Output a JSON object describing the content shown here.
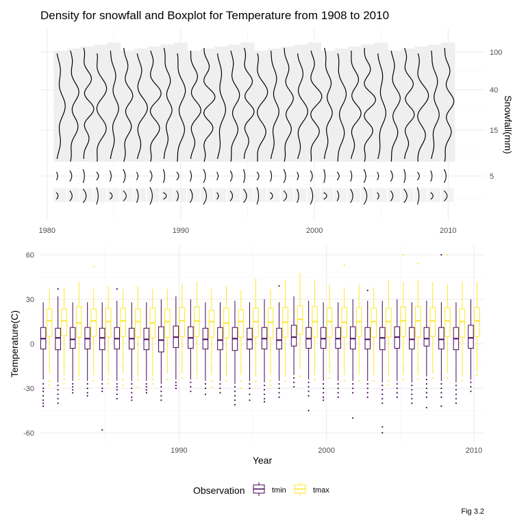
{
  "title": "Density for snowfall and Boxplot for Temperature from 1908 to 2010",
  "caption": "Fig 3.2",
  "chart_data": [
    {
      "type": "density",
      "x_ticks": [
        1980,
        1990,
        2000,
        2010
      ],
      "xlim": [
        1979.5,
        2012.7
      ],
      "y_ticks": [
        100,
        40,
        15,
        5
      ],
      "ylabel": "Snowfall(mm)",
      "ylabel_position": "right",
      "years": [
        1981,
        1982,
        1983,
        1984,
        1985,
        1986,
        1987,
        1988,
        1989,
        1990,
        1991,
        1992,
        1993,
        1994,
        1995,
        1996,
        1997,
        1998,
        1999,
        2000,
        2001,
        2002,
        2003,
        2004,
        2005,
        2006,
        2007,
        2008,
        2009,
        2010
      ],
      "grid": true
    },
    {
      "type": "boxplot",
      "xlabel": "Year",
      "ylabel": "Temperature(C)",
      "x_ticks": [
        1990,
        2000,
        2010
      ],
      "y_ticks": [
        60,
        30,
        0,
        -30,
        -60
      ],
      "ylim": [
        -64,
        63
      ],
      "legend_title": "Observation",
      "legend_position": "bottom",
      "grid": true,
      "years": [
        1981,
        1982,
        1983,
        1984,
        1985,
        1986,
        1987,
        1988,
        1989,
        1990,
        1991,
        1992,
        1993,
        1994,
        1995,
        1996,
        1997,
        1998,
        1999,
        2000,
        2001,
        2002,
        2003,
        2004,
        2005,
        2006,
        2007,
        2008,
        2009,
        2010
      ],
      "series": [
        {
          "name": "tmin",
          "color": "#440154",
          "median": [
            3.5,
            4,
            3,
            3.5,
            4,
            3.5,
            3.5,
            3,
            2.5,
            4.5,
            4,
            3,
            2.5,
            3.5,
            3,
            3.5,
            2.5,
            4.5,
            3.5,
            3.5,
            3.5,
            3.5,
            3,
            4,
            4.5,
            3,
            3.5,
            3,
            3.5,
            4
          ],
          "q1": [
            -3.5,
            -4,
            -3,
            -3.5,
            -4,
            -3.5,
            -3.5,
            -4,
            -5.5,
            -2.5,
            -3,
            -3.5,
            -4,
            -4.5,
            -3.5,
            -3.5,
            -3.5,
            -1.5,
            -3,
            -3,
            -3,
            -3.5,
            -3.5,
            -4,
            -3,
            -3.5,
            -1.5,
            -3.5,
            -4,
            -3
          ],
          "q3": [
            11,
            10.5,
            11,
            11,
            10.5,
            11,
            10.5,
            10.5,
            11.5,
            12,
            11.5,
            10.5,
            11,
            11,
            10.5,
            11,
            10.5,
            12.5,
            11,
            11,
            11,
            11.5,
            11,
            11,
            11.5,
            11,
            11,
            11,
            11,
            12.5
          ],
          "whisker_low": [
            -24,
            -26,
            -25,
            -25,
            -25,
            -25,
            -25,
            -25,
            -27,
            -24,
            -24,
            -25,
            -25,
            -27,
            -25,
            -26,
            -25,
            -21,
            -24,
            -25,
            -25,
            -25,
            -25,
            -26,
            -25,
            -26,
            -22,
            -25,
            -26,
            -24
          ],
          "whisker_high": [
            28,
            32,
            28,
            28,
            28,
            29,
            28,
            28,
            30,
            32,
            30,
            28,
            28,
            29,
            28,
            30,
            28,
            32,
            29,
            28,
            28,
            30,
            29,
            29,
            30,
            28,
            29,
            28,
            28,
            30
          ],
          "outliers": [
            [
              -27,
              -30,
              -32,
              -35,
              -38,
              -40,
              -42
            ],
            [
              -28,
              -31,
              -34,
              -37,
              -40,
              37
            ],
            [
              -27,
              -29,
              -31,
              -33
            ],
            [
              -27,
              -30,
              -33,
              -35
            ],
            [
              -27,
              -30,
              -32,
              -58
            ],
            [
              -27,
              -29,
              -31,
              -34,
              -37,
              37
            ],
            [
              -27,
              -30,
              -33,
              -36,
              -38
            ],
            [
              -27,
              -29,
              -31,
              -33
            ],
            [
              -29,
              -32,
              -35,
              -38
            ],
            [
              -26,
              -28,
              -30
            ],
            [
              -26,
              -29,
              -32
            ],
            [
              -27,
              -30,
              -34
            ],
            [
              -27,
              -30,
              -33
            ],
            [
              -29,
              -32,
              -35,
              -38,
              -41
            ],
            [
              -27,
              -30,
              -34,
              -38
            ],
            [
              -28,
              -31,
              -34,
              -37,
              -39
            ],
            [
              -27,
              -30,
              -33,
              -36,
              39
            ],
            [
              -23,
              -26,
              -29
            ],
            [
              -26,
              -29,
              -32,
              -35,
              -45
            ],
            [
              -27,
              -30,
              -33,
              -36,
              -38
            ],
            [
              -27,
              -30,
              -33,
              -36
            ],
            [
              -27,
              -30,
              -33,
              -50
            ],
            [
              -27,
              -30,
              -33,
              -36,
              36
            ],
            [
              -28,
              -31,
              -34,
              -37,
              -40,
              -56,
              -60
            ],
            [
              -27,
              -30,
              -33,
              -36
            ],
            [
              -28,
              -31,
              -34,
              -37,
              -40
            ],
            [
              -24,
              -27,
              -30,
              -33,
              -36,
              -43
            ],
            [
              -27,
              -30,
              -33,
              -36,
              -42,
              60
            ],
            [
              -28,
              -31,
              -34,
              -37,
              -40
            ],
            [
              -26,
              -29,
              -32
            ]
          ]
        },
        {
          "name": "tmax",
          "color": "#FDE725",
          "median": [
            15.5,
            15.5,
            14,
            15.5,
            15,
            15.5,
            15,
            14,
            15,
            15.5,
            15.5,
            15,
            14,
            15,
            15,
            14.5,
            14.5,
            16.5,
            15,
            15,
            14.5,
            15,
            15,
            15,
            15.5,
            15.5,
            15.5,
            15.5,
            15,
            15.5
          ],
          "q1": [
            5,
            5.5,
            4.5,
            5,
            4.5,
            5,
            4.5,
            4,
            4.5,
            5,
            5,
            4.5,
            4,
            4.5,
            4.5,
            4,
            4.5,
            6.5,
            4.5,
            4.5,
            4.5,
            5,
            4.5,
            4.5,
            5,
            4.5,
            5,
            5,
            4.5,
            5
          ],
          "q3": [
            23.5,
            23.5,
            25,
            23.5,
            24,
            24,
            23.5,
            24,
            23.5,
            24.5,
            25,
            22.5,
            24,
            23,
            24,
            24,
            24.5,
            25.5,
            25,
            24,
            24.5,
            24.5,
            24,
            24,
            25,
            25,
            24.5,
            24.5,
            23.5,
            24.5
          ],
          "whisker_low": [
            -20,
            -21,
            -22,
            -21,
            -21,
            -20,
            -22,
            -22,
            -20,
            -20,
            -21,
            -21,
            -22,
            -21,
            -22,
            -21,
            -22,
            -17,
            -21,
            -20,
            -21,
            -21,
            -21,
            -22,
            -21,
            -21,
            -20,
            -20,
            -22,
            -19
          ],
          "whisker_high": [
            37,
            38,
            42,
            37,
            39,
            37,
            39,
            37,
            37,
            40,
            42,
            37,
            39,
            36,
            44,
            37,
            43,
            48,
            43,
            40,
            38,
            40,
            38,
            43,
            42,
            43,
            42,
            40,
            42,
            42
          ],
          "outliers": [
            [
              -25,
              -28
            ],
            [
              -24,
              -27
            ],
            [
              -24
            ],
            [
              52,
              -25
            ],
            [
              -24,
              -27
            ],
            [
              -24,
              -28
            ],
            [
              -24,
              -29
            ],
            [
              -24,
              -27
            ],
            [
              -24
            ],
            [
              -23
            ],
            [
              -23
            ],
            [
              -25,
              -29
            ],
            [
              -25
            ],
            [
              -25,
              -30
            ],
            [
              -25
            ],
            [
              -25,
              -28
            ],
            [
              -25
            ],
            [
              -22
            ],
            [
              -24
            ],
            [
              -23
            ],
            [
              53,
              -25
            ],
            [
              -25
            ],
            [
              -25
            ],
            [
              -25,
              -28
            ],
            [
              60,
              -24
            ],
            [
              54,
              -24
            ],
            [
              -23
            ],
            [
              60,
              -23
            ],
            [
              -25
            ],
            [
              -21
            ]
          ]
        }
      ]
    }
  ]
}
